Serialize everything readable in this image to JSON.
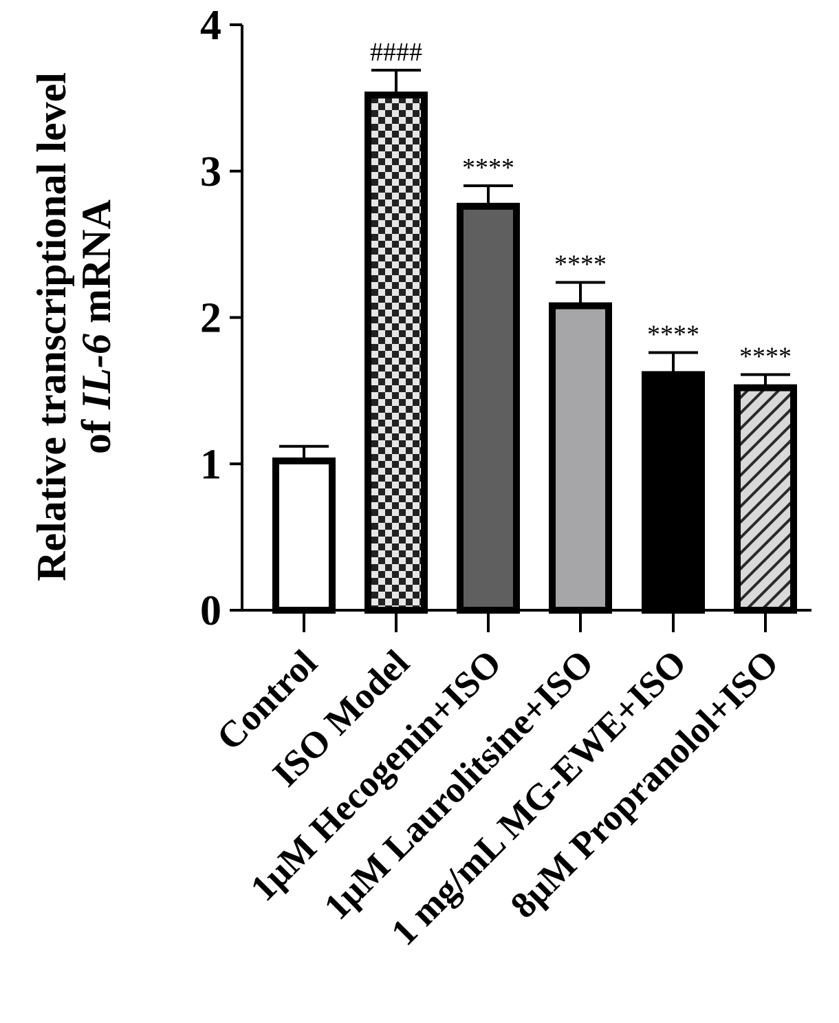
{
  "chart_data": {
    "type": "bar",
    "title": "",
    "ylabel_line1": "Relative transcriptional level",
    "ylabel_line2_prefix": "of ",
    "ylabel_line2_gene": "IL-6",
    "ylabel_line2_suffix": " mRNA",
    "xlabel": "",
    "ylim": [
      0,
      4
    ],
    "yticks": [
      0,
      1,
      2,
      3,
      4
    ],
    "categories": [
      "Control",
      "ISO Model",
      "1μM Hecogenin+ISO",
      "1μM Laurolitsine+ISO",
      "1 mg/mL MG-EWE+ISO",
      "8μM Propranolol+ISO"
    ],
    "values": [
      1.02,
      3.52,
      2.76,
      2.08,
      1.61,
      1.52
    ],
    "errors": [
      0.1,
      0.17,
      0.14,
      0.16,
      0.15,
      0.09
    ],
    "annotations": [
      "",
      "####",
      "****",
      "****",
      "****",
      "****"
    ],
    "fills": [
      "white",
      "checker",
      "#5f5f5f",
      "#a6a6a9",
      "#000000",
      "hatch"
    ],
    "grid": false,
    "legend": "none"
  }
}
